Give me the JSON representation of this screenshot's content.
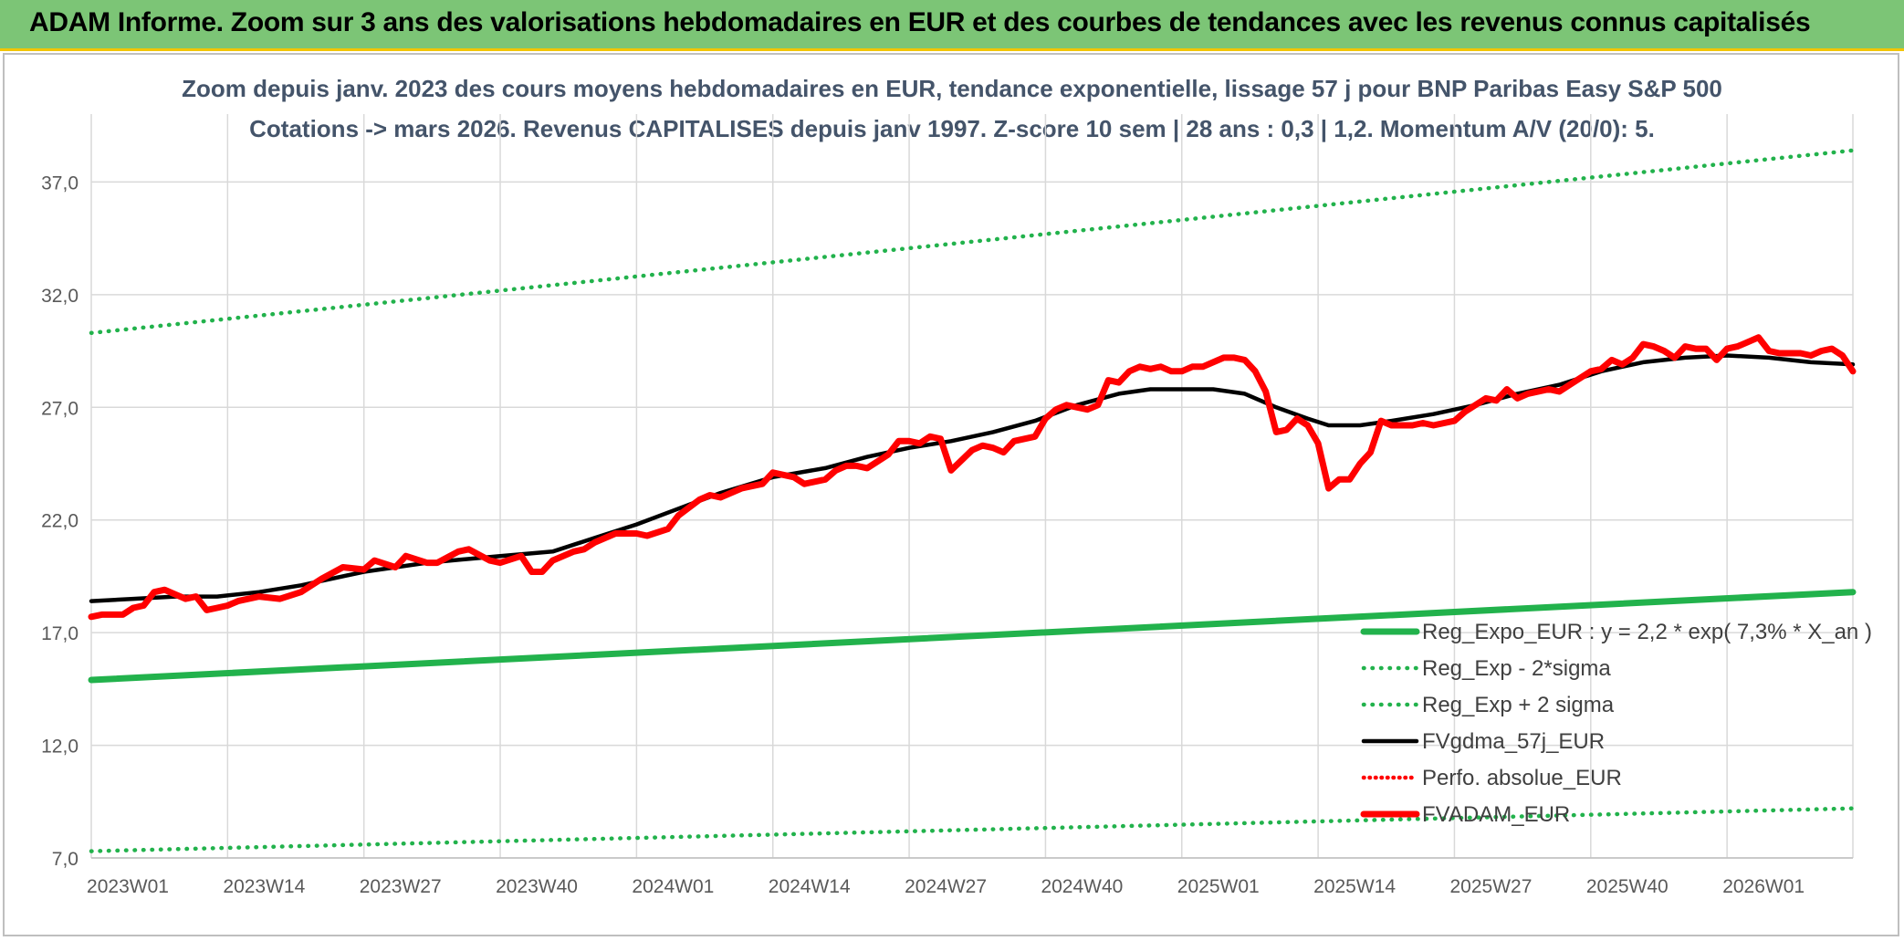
{
  "header": {
    "title": "ADAM Informe. Zoom sur 3 ans des valorisations hebdomadaires en EUR et des courbes de tendances avec les revenus connus capitalisés"
  },
  "chart_data": {
    "type": "line",
    "title": "Zoom depuis janv. 2023 des cours moyens hebdomadaires en EUR, tendance exponentielle, lissage 57 j pour BNP Paribas Easy S&P 500",
    "subtitle": "Cotations -> mars 2026. Revenus CAPITALISES depuis janv 1997. Z-score 10 sem | 28 ans : 0,3 | 1,2. Momentum A/V (20/0): 5.",
    "xlabel": "",
    "ylabel": "",
    "ylim": [
      7.0,
      39.0
    ],
    "y_ticks": [
      "7,0",
      "12,0",
      "17,0",
      "22,0",
      "27,0",
      "32,0",
      "37,0"
    ],
    "y_tick_values": [
      7,
      12,
      17,
      22,
      27,
      32,
      37
    ],
    "x_ticks": [
      "2023W01",
      "2023W14",
      "2023W27",
      "2023W40",
      "2024W01",
      "2024W14",
      "2024W27",
      "2024W40",
      "2025W01",
      "2025W14",
      "2025W27",
      "2025W40",
      "2026W01"
    ],
    "x_tick_weeks": [
      0,
      13,
      26,
      39,
      52,
      65,
      78,
      91,
      104,
      117,
      130,
      143,
      156
    ],
    "x_range_weeks": [
      0,
      168
    ],
    "grid": true,
    "legend_position": "bottom-right",
    "series": [
      {
        "name": "Reg_Expo_EUR : y = 2,2 * exp( 7,3% *  X_an )",
        "color": "#22b24c",
        "style": "solid-thick",
        "x": [
          0,
          168
        ],
        "y": [
          14.9,
          18.8
        ]
      },
      {
        "name": "Reg_Exp - 2*sigma",
        "color": "#22b24c",
        "style": "dotted",
        "x": [
          0,
          168
        ],
        "y": [
          7.3,
          9.2
        ]
      },
      {
        "name": "Reg_Exp + 2 sigma",
        "color": "#22b24c",
        "style": "dotted",
        "x": [
          0,
          168
        ],
        "y": [
          30.3,
          38.4
        ]
      },
      {
        "name": "FVgdma_57j_EUR",
        "color": "#000000",
        "style": "solid",
        "x": [
          0,
          4,
          8,
          12,
          16,
          20,
          26,
          32,
          39,
          44,
          48,
          52,
          56,
          60,
          65,
          70,
          74,
          78,
          82,
          86,
          90,
          94,
          98,
          101,
          104,
          107,
          110,
          113,
          116,
          118,
          121,
          124,
          128,
          132,
          136,
          140,
          144,
          148,
          152,
          156,
          160,
          164,
          168
        ],
        "y": [
          18.4,
          18.5,
          18.6,
          18.6,
          18.8,
          19.1,
          19.7,
          20.1,
          20.4,
          20.6,
          21.2,
          21.8,
          22.5,
          23.2,
          23.9,
          24.3,
          24.8,
          25.2,
          25.5,
          25.9,
          26.4,
          27.1,
          27.6,
          27.8,
          27.8,
          27.8,
          27.6,
          27.0,
          26.5,
          26.2,
          26.2,
          26.4,
          26.7,
          27.1,
          27.6,
          28.0,
          28.6,
          29.0,
          29.2,
          29.3,
          29.2,
          29.0,
          28.9
        ]
      },
      {
        "name": "Perfo. absolue_EUR",
        "color": "#ff0000",
        "style": "dotted",
        "x": [],
        "y": []
      },
      {
        "name": "FVADAM_EUR",
        "color": "#ff0000",
        "style": "solid-thick",
        "x": [
          0,
          1,
          3,
          4,
          5,
          6,
          7,
          8,
          9,
          10,
          11,
          12,
          13,
          14,
          16,
          18,
          20,
          22,
          24,
          26,
          27,
          29,
          30,
          32,
          33,
          35,
          36,
          38,
          39,
          41,
          42,
          43,
          44,
          46,
          47,
          48,
          50,
          52,
          53,
          55,
          56,
          58,
          59,
          60,
          62,
          64,
          65,
          67,
          68,
          70,
          71,
          72,
          73,
          74,
          76,
          77,
          78,
          79,
          80,
          81,
          82,
          84,
          85,
          86,
          87,
          88,
          90,
          91,
          92,
          93,
          95,
          96,
          97,
          98,
          99,
          100,
          101,
          102,
          103,
          104,
          105,
          106,
          108,
          109,
          110,
          111,
          112,
          113,
          114,
          115,
          116,
          117,
          118,
          119,
          120,
          121,
          122,
          123,
          124,
          126,
          127,
          128,
          130,
          131,
          132,
          133,
          134,
          135,
          136,
          137,
          138,
          139,
          140,
          141,
          142,
          143,
          144,
          145,
          146,
          147,
          148,
          149,
          150,
          151,
          152,
          153,
          154,
          155,
          156,
          157,
          158,
          159,
          160,
          161,
          162,
          163,
          164,
          165,
          166,
          167,
          168
        ],
        "y": [
          17.7,
          17.8,
          17.8,
          18.1,
          18.2,
          18.8,
          18.9,
          18.7,
          18.5,
          18.6,
          18.0,
          18.1,
          18.2,
          18.4,
          18.6,
          18.5,
          18.8,
          19.4,
          19.9,
          19.8,
          20.2,
          19.9,
          20.4,
          20.1,
          20.1,
          20.6,
          20.7,
          20.2,
          20.1,
          20.4,
          19.7,
          19.7,
          20.2,
          20.6,
          20.7,
          21.0,
          21.4,
          21.4,
          21.3,
          21.6,
          22.2,
          22.9,
          23.1,
          23.0,
          23.4,
          23.6,
          24.1,
          23.9,
          23.6,
          23.8,
          24.2,
          24.4,
          24.4,
          24.3,
          24.9,
          25.5,
          25.5,
          25.4,
          25.7,
          25.6,
          24.2,
          25.1,
          25.3,
          25.2,
          25.0,
          25.5,
          25.7,
          26.5,
          26.9,
          27.1,
          26.9,
          27.1,
          28.2,
          28.1,
          28.6,
          28.8,
          28.7,
          28.8,
          28.6,
          28.6,
          28.8,
          28.8,
          29.2,
          29.2,
          29.1,
          28.6,
          27.7,
          25.9,
          26.0,
          26.5,
          26.2,
          25.4,
          23.4,
          23.8,
          23.8,
          24.5,
          25.0,
          26.4,
          26.2,
          26.2,
          26.3,
          26.2,
          26.4,
          26.8,
          27.1,
          27.4,
          27.3,
          27.8,
          27.4,
          27.6,
          27.7,
          27.8,
          27.7,
          28.0,
          28.3,
          28.6,
          28.7,
          29.1,
          28.9,
          29.2,
          29.8,
          29.7,
          29.5,
          29.2,
          29.7,
          29.6,
          29.6,
          29.1,
          29.6,
          29.7,
          29.9,
          30.1,
          29.5,
          29.4,
          29.4,
          29.4,
          29.3,
          29.5,
          29.6,
          29.3,
          28.6
        ]
      }
    ]
  }
}
